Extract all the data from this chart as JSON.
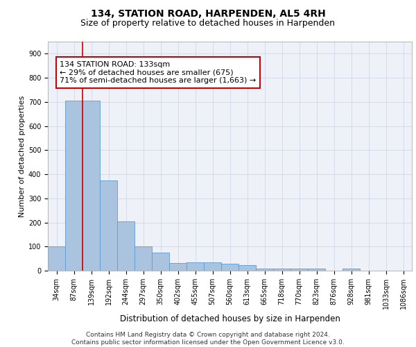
{
  "title1": "134, STATION ROAD, HARPENDEN, AL5 4RH",
  "title2": "Size of property relative to detached houses in Harpenden",
  "xlabel": "Distribution of detached houses by size in Harpenden",
  "ylabel": "Number of detached properties",
  "categories": [
    "34sqm",
    "87sqm",
    "139sqm",
    "192sqm",
    "244sqm",
    "297sqm",
    "350sqm",
    "402sqm",
    "455sqm",
    "507sqm",
    "560sqm",
    "613sqm",
    "665sqm",
    "718sqm",
    "770sqm",
    "823sqm",
    "876sqm",
    "928sqm",
    "981sqm",
    "1033sqm",
    "1086sqm"
  ],
  "values": [
    102,
    705,
    705,
    375,
    205,
    100,
    75,
    32,
    35,
    35,
    30,
    22,
    10,
    10,
    8,
    10,
    0,
    10,
    0,
    0,
    0
  ],
  "bar_color": "#aac4e0",
  "bar_edge_color": "#5b9bd5",
  "vline_x_index": 2,
  "vline_color": "#cc0000",
  "annotation_text": "134 STATION ROAD: 133sqm\n← 29% of detached houses are smaller (675)\n71% of semi-detached houses are larger (1,663) →",
  "annotation_box_color": "#ffffff",
  "annotation_box_edge": "#cc0000",
  "ylim": [
    0,
    950
  ],
  "yticks": [
    0,
    100,
    200,
    300,
    400,
    500,
    600,
    700,
    800,
    900
  ],
  "grid_color": "#d0d8e8",
  "background_color": "#eef2f8",
  "footer_text": "Contains HM Land Registry data © Crown copyright and database right 2024.\nContains public sector information licensed under the Open Government Licence v3.0.",
  "title1_fontsize": 10,
  "title2_fontsize": 9,
  "xlabel_fontsize": 8.5,
  "ylabel_fontsize": 8,
  "tick_fontsize": 7,
  "annotation_fontsize": 8,
  "footer_fontsize": 6.5
}
